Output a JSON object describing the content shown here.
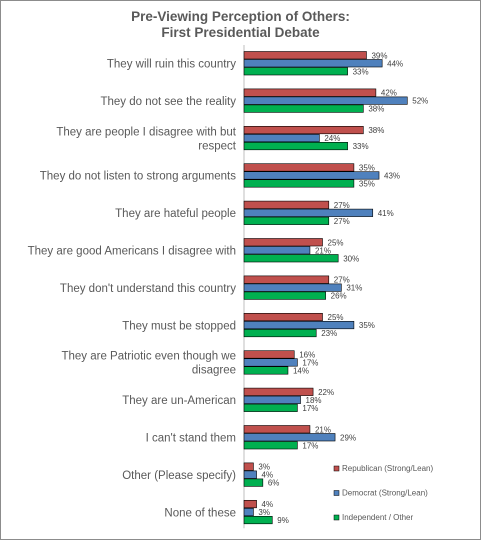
{
  "chart_data": {
    "type": "bar",
    "orientation": "horizontal",
    "title_line1": "Pre-Viewing Perception of Others:",
    "title_line2": "First Presidential Debate",
    "categories": [
      "They will ruin this country",
      "They do not see the reality",
      "They are people I disagree with but respect",
      "They do not listen to strong arguments",
      "They are hateful people",
      "They are good Americans I disagree with",
      "They don't understand this country",
      "They must be stopped",
      "They are Patriotic even though we disagree",
      "They are un-American",
      "I can't stand them",
      "Other (Please specify)",
      "None of these"
    ],
    "category_lines": [
      [
        "They will ruin this country"
      ],
      [
        "They do not see the reality"
      ],
      [
        "They are people I disagree with but",
        "respect"
      ],
      [
        "They do not listen to strong arguments"
      ],
      [
        "They are hateful people"
      ],
      [
        "They are good Americans I disagree with"
      ],
      [
        "They don't understand this country"
      ],
      [
        "They must be stopped"
      ],
      [
        "They are Patriotic even though we",
        "disagree"
      ],
      [
        "They are un-American"
      ],
      [
        "I can't stand them"
      ],
      [
        "Other (Please specify)"
      ],
      [
        "None of these"
      ]
    ],
    "series": [
      {
        "name": "Republican (Strong/Lean)",
        "color": "#c0504d",
        "values": [
          39,
          42,
          38,
          35,
          27,
          25,
          27,
          25,
          16,
          22,
          21,
          3,
          4
        ]
      },
      {
        "name": "Democrat (Strong/Lean)",
        "color": "#4f81bd",
        "values": [
          44,
          52,
          24,
          43,
          41,
          21,
          31,
          35,
          17,
          18,
          29,
          4,
          3
        ]
      },
      {
        "name": "Independent / Other",
        "color": "#00b050",
        "values": [
          33,
          38,
          33,
          35,
          27,
          30,
          26,
          23,
          14,
          17,
          17,
          6,
          9
        ]
      }
    ],
    "value_suffix": "%",
    "xlim": [
      0,
      60
    ],
    "grid": false,
    "legend_position": "bottom-right"
  }
}
